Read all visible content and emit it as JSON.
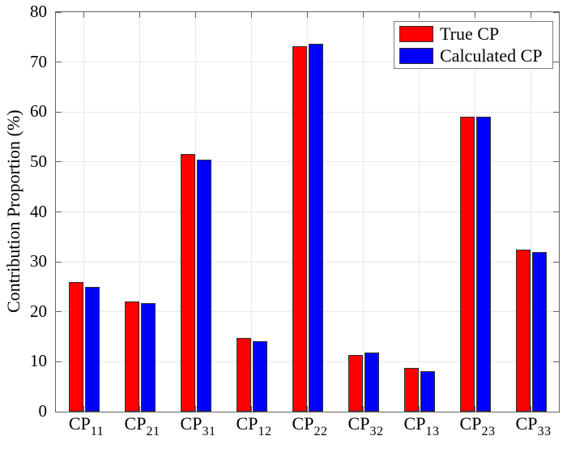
{
  "chart_data": {
    "type": "bar",
    "title": "",
    "ylabel": "Contribution Proportion (%)",
    "xlabel": "",
    "ylim": [
      0,
      80
    ],
    "yticks": [
      0,
      10,
      20,
      30,
      40,
      50,
      60,
      70,
      80
    ],
    "grid": true,
    "legend_position": "top-right",
    "categories": [
      {
        "base": "CP",
        "sub": "11"
      },
      {
        "base": "CP",
        "sub": "21"
      },
      {
        "base": "CP",
        "sub": "31"
      },
      {
        "base": "CP",
        "sub": "12"
      },
      {
        "base": "CP",
        "sub": "22"
      },
      {
        "base": "CP",
        "sub": "32"
      },
      {
        "base": "CP",
        "sub": "13"
      },
      {
        "base": "CP",
        "sub": "23"
      },
      {
        "base": "CP",
        "sub": "33"
      }
    ],
    "series": [
      {
        "name": "True CP",
        "color": "#ff0000",
        "values": [
          26.0,
          22.0,
          51.6,
          14.7,
          73.2,
          11.4,
          8.7,
          59.0,
          32.5
        ]
      },
      {
        "name": "Calculated CP",
        "color": "#0000ff",
        "values": [
          25.0,
          21.8,
          50.5,
          14.1,
          73.6,
          11.9,
          8.2,
          59.0,
          31.9
        ]
      }
    ],
    "colors": {
      "bar_edge": "#333333",
      "grid": "#e9e9e9",
      "spine": "#646464",
      "tick": "#646464",
      "text": "#000000",
      "legend_border": "#7d7d7d",
      "background": "#ffffff"
    }
  }
}
